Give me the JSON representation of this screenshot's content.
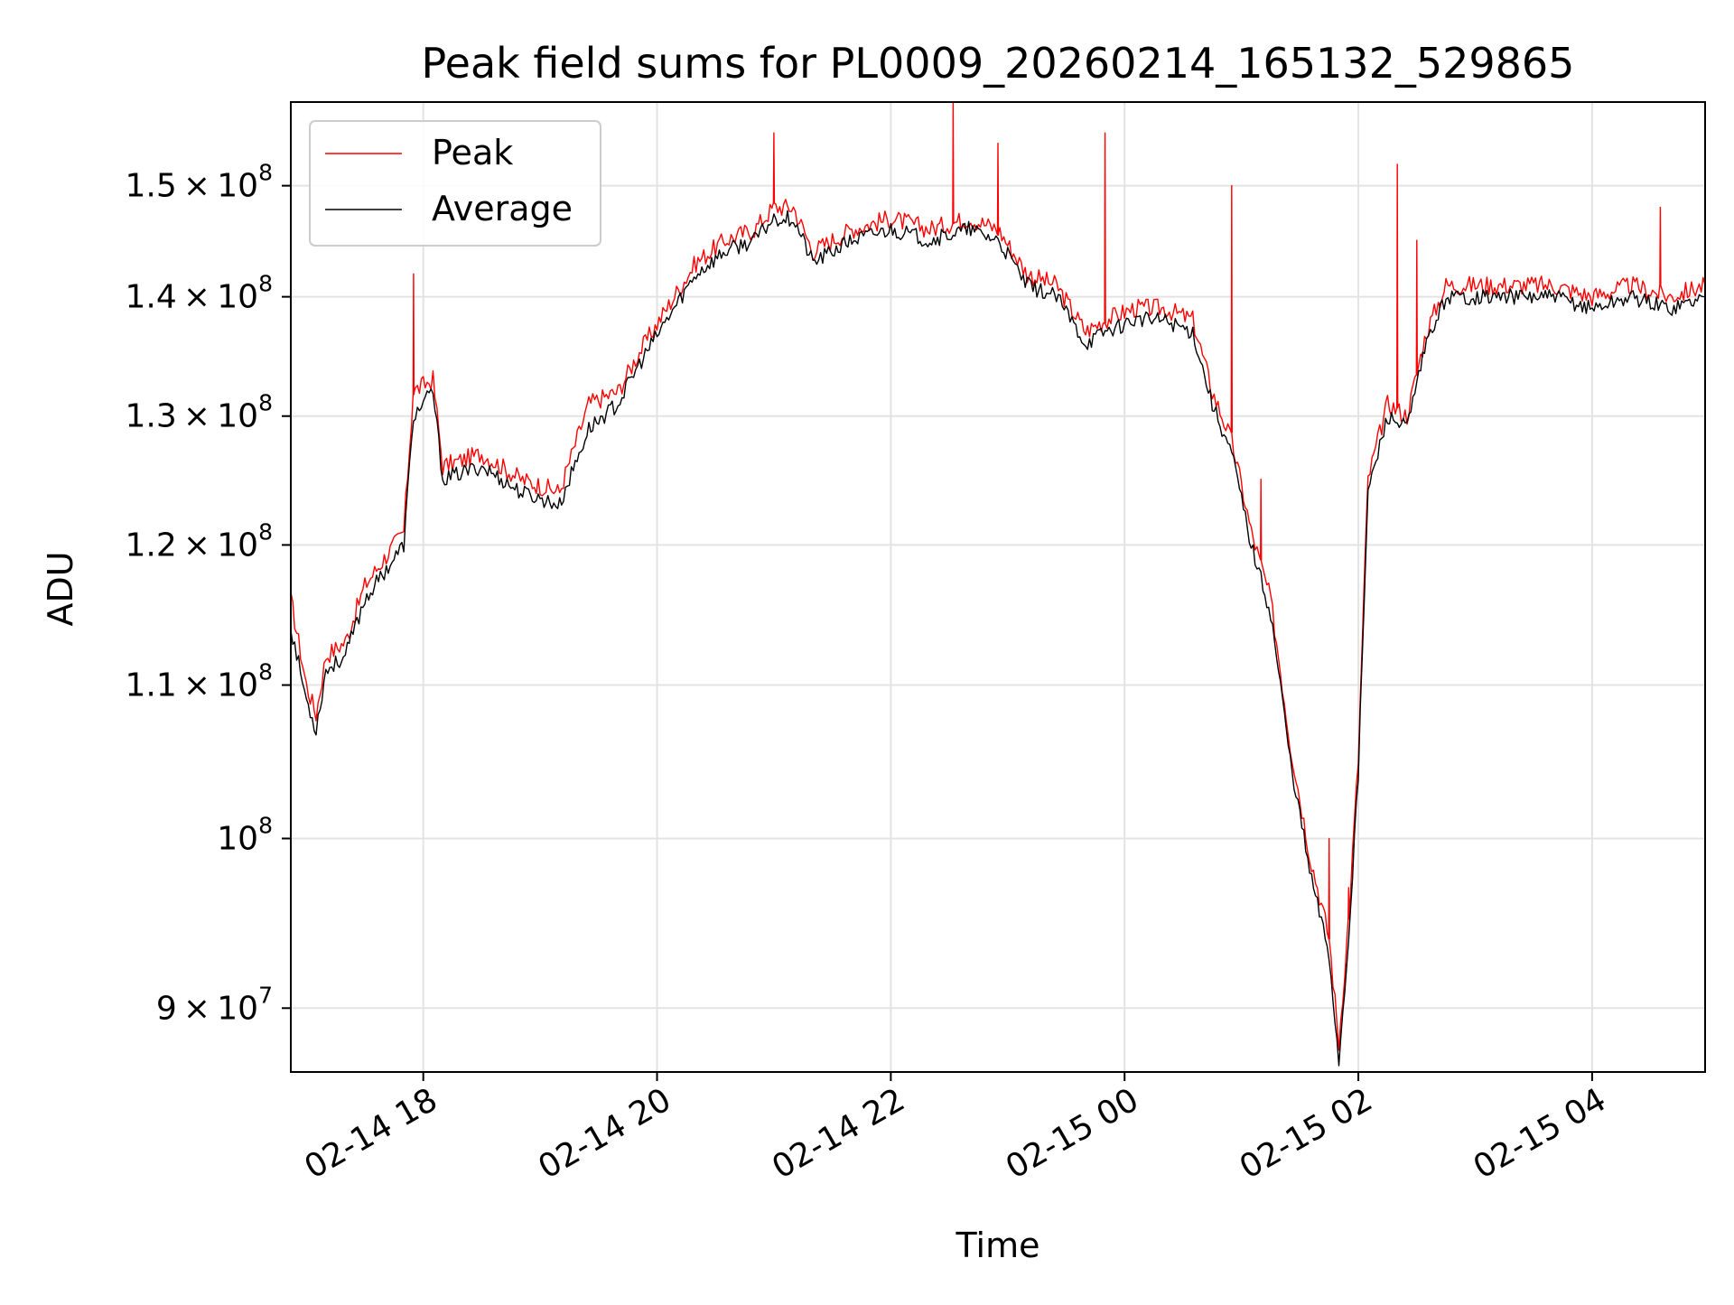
{
  "chart_data": {
    "type": "line",
    "title": "Peak field sums for PL0009_20260214_165132_529865",
    "xlabel": "Time",
    "ylabel": "ADU",
    "x_tick_labels": [
      "02-14 18",
      "02-14 20",
      "02-14 22",
      "02-15 00",
      "02-15 02",
      "02-15 04"
    ],
    "y_ticks": [
      {
        "value": 90000000,
        "mantissa": "9",
        "exponent": "7"
      },
      {
        "value": 100000000,
        "mantissa": "",
        "exponent": "8"
      },
      {
        "value": 110000000,
        "mantissa": "1.1",
        "exponent": "8"
      },
      {
        "value": 120000000,
        "mantissa": "1.2",
        "exponent": "8"
      },
      {
        "value": 130000000,
        "mantissa": "1.3",
        "exponent": "8"
      },
      {
        "value": 140000000,
        "mantissa": "1.4",
        "exponent": "8"
      },
      {
        "value": 150000000,
        "mantissa": "1.5",
        "exponent": "8"
      }
    ],
    "times_symbol": "×",
    "tick_base": "10",
    "y_scale": "log",
    "xlim": [
      "2026-02-14 16:52",
      "2026-02-15 04:58"
    ],
    "ylim": [
      86500000,
      158000000
    ],
    "grid": true,
    "legend_position": "top-left",
    "series": [
      {
        "name": "Peak",
        "color": "#ff0000",
        "x": [
          "2026-02-14 16:52",
          "2026-02-14 17:00",
          "2026-02-14 17:05",
          "2026-02-14 17:10",
          "2026-02-14 17:20",
          "2026-02-14 17:30",
          "2026-02-14 17:40",
          "2026-02-14 17:50",
          "2026-02-14 17:55",
          "2026-02-14 18:05",
          "2026-02-14 18:10",
          "2026-02-14 18:30",
          "2026-02-14 18:50",
          "2026-02-14 19:10",
          "2026-02-14 19:25",
          "2026-02-14 19:40",
          "2026-02-14 19:50",
          "2026-02-14 20:05",
          "2026-02-14 20:20",
          "2026-02-14 20:35",
          "2026-02-14 20:50",
          "2026-02-14 21:00",
          "2026-02-14 21:10",
          "2026-02-14 21:20",
          "2026-02-14 21:40",
          "2026-02-14 22:00",
          "2026-02-14 22:20",
          "2026-02-14 22:40",
          "2026-02-14 22:55",
          "2026-02-14 23:10",
          "2026-02-14 23:25",
          "2026-02-14 23:40",
          "2026-02-14 23:50",
          "2026-02-15 00:05",
          "2026-02-15 00:20",
          "2026-02-15 00:35",
          "2026-02-15 00:45",
          "2026-02-15 00:55",
          "2026-02-15 01:05",
          "2026-02-15 01:15",
          "2026-02-15 01:25",
          "2026-02-15 01:35",
          "2026-02-15 01:45",
          "2026-02-15 01:50",
          "2026-02-15 01:55",
          "2026-02-15 02:00",
          "2026-02-15 02:05",
          "2026-02-15 02:15",
          "2026-02-15 02:25",
          "2026-02-15 02:35",
          "2026-02-15 02:45",
          "2026-02-15 03:00",
          "2026-02-15 03:20",
          "2026-02-15 03:40",
          "2026-02-15 04:00",
          "2026-02-15 04:20",
          "2026-02-15 04:40",
          "2026-02-15 04:58"
        ],
        "values": [
          116000000,
          110000000,
          108000000,
          112000000,
          113000000,
          117000000,
          119000000,
          121000000,
          132000000,
          133000000,
          126000000,
          127000000,
          125000000,
          124000000,
          131000000,
          132000000,
          135000000,
          139000000,
          143000000,
          145000000,
          146000000,
          148000000,
          148000000,
          144000000,
          146000000,
          147000000,
          146000000,
          147000000,
          146000000,
          142000000,
          141000000,
          137000000,
          138000000,
          139000000,
          139000000,
          138000000,
          132000000,
          128000000,
          121000000,
          116000000,
          106000000,
          99000000,
          94000000,
          88000000,
          95000000,
          105000000,
          125000000,
          131000000,
          130000000,
          137000000,
          141000000,
          141000000,
          141000000,
          141000000,
          140000000,
          141000000,
          140000000,
          141000000
        ]
      },
      {
        "name": "Average",
        "color": "#000000",
        "x": [
          "2026-02-14 16:52",
          "2026-02-14 17:00",
          "2026-02-14 17:05",
          "2026-02-14 17:10",
          "2026-02-14 17:20",
          "2026-02-14 17:30",
          "2026-02-14 17:40",
          "2026-02-14 17:50",
          "2026-02-14 17:55",
          "2026-02-14 18:05",
          "2026-02-14 18:10",
          "2026-02-14 18:30",
          "2026-02-14 18:50",
          "2026-02-14 19:10",
          "2026-02-14 19:25",
          "2026-02-14 19:40",
          "2026-02-14 19:50",
          "2026-02-14 20:05",
          "2026-02-14 20:20",
          "2026-02-14 20:35",
          "2026-02-14 20:50",
          "2026-02-14 21:00",
          "2026-02-14 21:10",
          "2026-02-14 21:20",
          "2026-02-14 21:40",
          "2026-02-14 22:00",
          "2026-02-14 22:20",
          "2026-02-14 22:40",
          "2026-02-14 22:55",
          "2026-02-14 23:10",
          "2026-02-14 23:25",
          "2026-02-14 23:40",
          "2026-02-14 23:50",
          "2026-02-15 00:05",
          "2026-02-15 00:20",
          "2026-02-15 00:35",
          "2026-02-15 00:45",
          "2026-02-15 00:55",
          "2026-02-15 01:05",
          "2026-02-15 01:15",
          "2026-02-15 01:25",
          "2026-02-15 01:35",
          "2026-02-15 01:45",
          "2026-02-15 01:50",
          "2026-02-15 01:55",
          "2026-02-15 02:00",
          "2026-02-15 02:05",
          "2026-02-15 02:15",
          "2026-02-15 02:25",
          "2026-02-15 02:35",
          "2026-02-15 02:45",
          "2026-02-15 03:00",
          "2026-02-15 03:20",
          "2026-02-15 03:40",
          "2026-02-15 04:00",
          "2026-02-15 04:20",
          "2026-02-15 04:40",
          "2026-02-15 04:58"
        ],
        "values": [
          114000000,
          109000000,
          107000000,
          111000000,
          112000000,
          116000000,
          118000000,
          120000000,
          130000000,
          132000000,
          125000000,
          126000000,
          124000000,
          123000000,
          129000000,
          131000000,
          134000000,
          138000000,
          142000000,
          144000000,
          145000000,
          147000000,
          147000000,
          143000000,
          145000000,
          146000000,
          145000000,
          146000000,
          145000000,
          141000000,
          140000000,
          136000000,
          137000000,
          138000000,
          138000000,
          137000000,
          131000000,
          127000000,
          120000000,
          115000000,
          105000000,
          98000000,
          93000000,
          87000000,
          94000000,
          104000000,
          124000000,
          130000000,
          129000000,
          136000000,
          140000000,
          140000000,
          140000000,
          140000000,
          139000000,
          140000000,
          139000000,
          140000000
        ]
      }
    ],
    "peak_spikes": [
      {
        "x": "2026-02-14 17:55",
        "value": 142000000
      },
      {
        "x": "2026-02-14 21:00",
        "value": 155000000
      },
      {
        "x": "2026-02-14 22:32",
        "value": 158000000
      },
      {
        "x": "2026-02-14 22:55",
        "value": 154000000
      },
      {
        "x": "2026-02-14 23:50",
        "value": 155000000
      },
      {
        "x": "2026-02-15 00:55",
        "value": 150000000
      },
      {
        "x": "2026-02-15 01:10",
        "value": 125000000
      },
      {
        "x": "2026-02-15 01:45",
        "value": 100000000
      },
      {
        "x": "2026-02-15 01:55",
        "value": 97000000
      },
      {
        "x": "2026-02-15 02:20",
        "value": 152000000
      },
      {
        "x": "2026-02-15 02:30",
        "value": 145000000
      },
      {
        "x": "2026-02-15 04:35",
        "value": 148000000
      }
    ]
  }
}
